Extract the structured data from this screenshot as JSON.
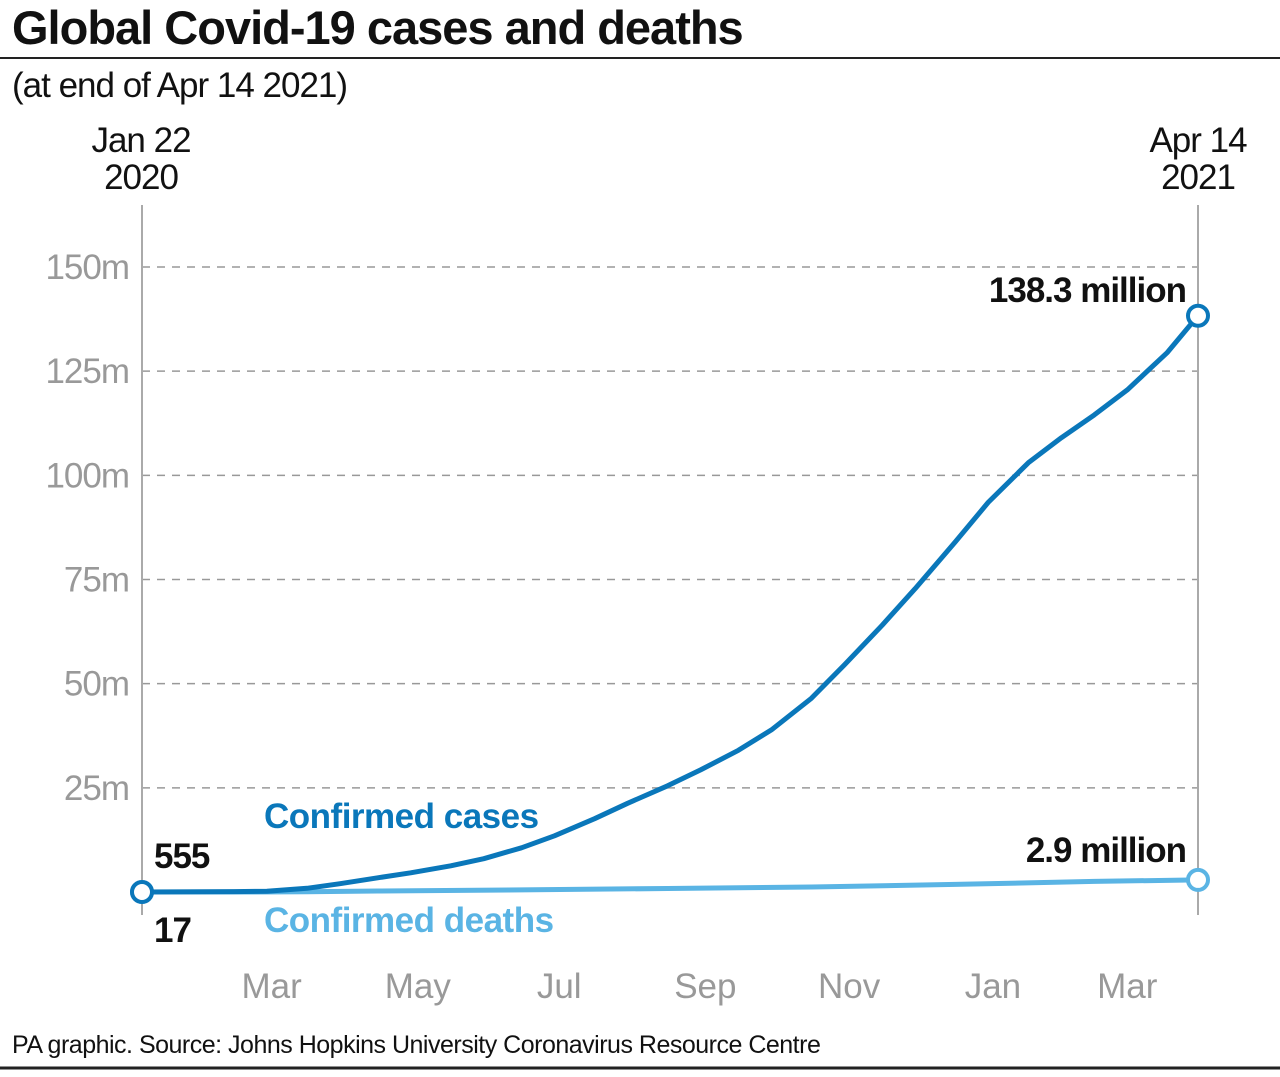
{
  "chart_data": {
    "type": "line",
    "title": "Global Covid-19 cases and deaths",
    "subtitle": "(at end of Apr 14 2021)",
    "source": "PA graphic. Source: Johns Hopkins University Coronavirus Resource Centre",
    "x_start": {
      "date": "2020-01-22",
      "label_line1": "Jan 22",
      "label_line2": "2020"
    },
    "x_end": {
      "date": "2021-04-14",
      "label_line1": "Apr 14",
      "label_line2": "2021"
    },
    "xlim": [
      "2020-01-22",
      "2021-04-14"
    ],
    "ylim": [
      0,
      155
    ],
    "yunit": "millions",
    "yticks": [
      {
        "value": 25,
        "label": "25m"
      },
      {
        "value": 50,
        "label": "50m"
      },
      {
        "value": 75,
        "label": "75m"
      },
      {
        "value": 100,
        "label": "100m"
      },
      {
        "value": 125,
        "label": "125m"
      },
      {
        "value": 150,
        "label": "150m"
      }
    ],
    "xticks": [
      {
        "date": "2020-03-17",
        "label": "Mar"
      },
      {
        "date": "2020-05-18",
        "label": "May"
      },
      {
        "date": "2020-07-17",
        "label": "Jul"
      },
      {
        "date": "2020-09-17",
        "label": "Sep"
      },
      {
        "date": "2020-11-17",
        "label": "Nov"
      },
      {
        "date": "2021-01-17",
        "label": "Jan"
      },
      {
        "date": "2021-03-15",
        "label": "Mar"
      }
    ],
    "grid": "horizontal dashed",
    "series": [
      {
        "name": "Confirmed cases",
        "color": "#0a77ba",
        "start_label": "555",
        "end_label": "138.3 million",
        "points": [
          [
            "2020-01-22",
            0.000555
          ],
          [
            "2020-03-01",
            0.09
          ],
          [
            "2020-03-15",
            0.17
          ],
          [
            "2020-04-01",
            0.9
          ],
          [
            "2020-04-15",
            2.0
          ],
          [
            "2020-05-01",
            3.4
          ],
          [
            "2020-05-15",
            4.6
          ],
          [
            "2020-06-01",
            6.3
          ],
          [
            "2020-06-15",
            8.0
          ],
          [
            "2020-07-01",
            10.6
          ],
          [
            "2020-07-15",
            13.5
          ],
          [
            "2020-08-01",
            17.6
          ],
          [
            "2020-08-15",
            21.3
          ],
          [
            "2020-09-01",
            25.5
          ],
          [
            "2020-09-15",
            29.3
          ],
          [
            "2020-10-01",
            34.0
          ],
          [
            "2020-10-15",
            38.9
          ],
          [
            "2020-11-01",
            46.5
          ],
          [
            "2020-11-15",
            54.5
          ],
          [
            "2020-12-01",
            64.0
          ],
          [
            "2020-12-15",
            72.8
          ],
          [
            "2021-01-01",
            84.0
          ],
          [
            "2021-01-15",
            93.5
          ],
          [
            "2021-02-01",
            103.0
          ],
          [
            "2021-02-15",
            109.0
          ],
          [
            "2021-03-01",
            114.5
          ],
          [
            "2021-03-15",
            120.5
          ],
          [
            "2021-04-01",
            129.5
          ],
          [
            "2021-04-14",
            138.3
          ]
        ]
      },
      {
        "name": "Confirmed deaths",
        "color": "#5ab4e4",
        "start_label": "17",
        "end_label": "2.9 million",
        "points": [
          [
            "2020-01-22",
            1.7e-05
          ],
          [
            "2020-03-01",
            0.003
          ],
          [
            "2020-04-01",
            0.05
          ],
          [
            "2020-05-01",
            0.24
          ],
          [
            "2020-07-01",
            0.51
          ],
          [
            "2020-09-01",
            0.85
          ],
          [
            "2020-11-01",
            1.19
          ],
          [
            "2021-01-01",
            1.82
          ],
          [
            "2021-03-01",
            2.55
          ],
          [
            "2021-04-14",
            2.9
          ]
        ]
      }
    ]
  }
}
